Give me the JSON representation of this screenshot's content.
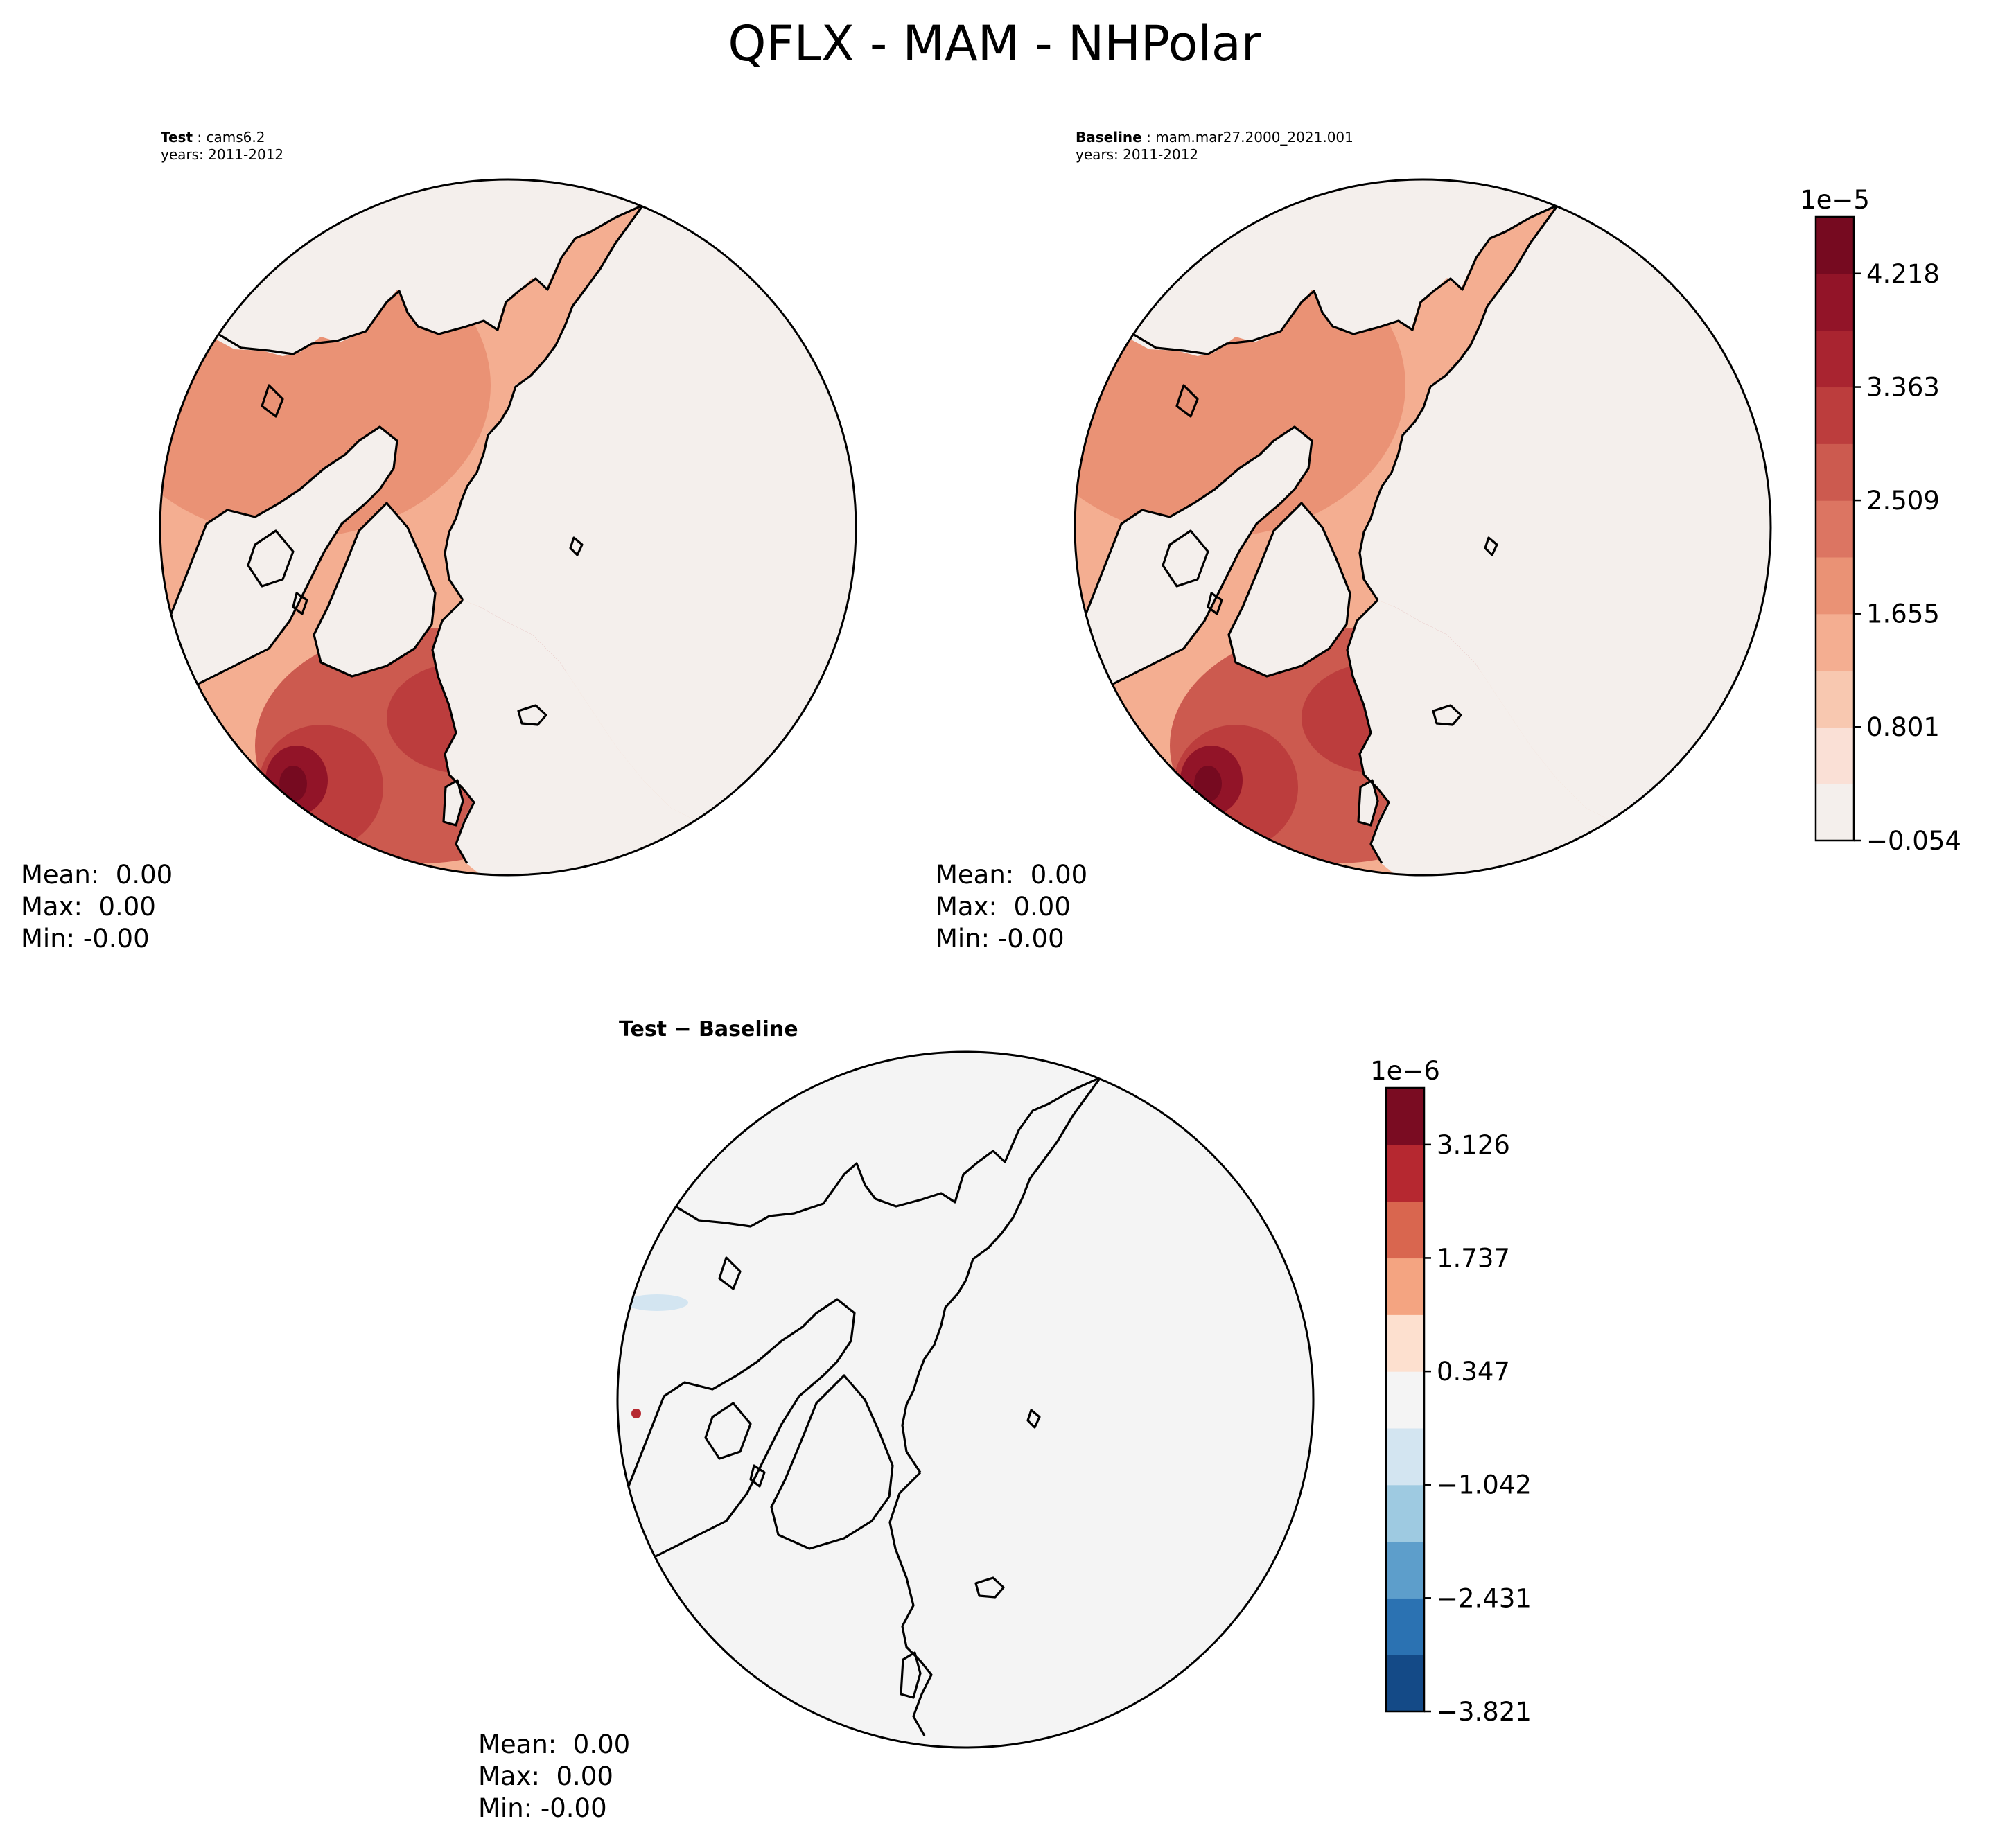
{
  "figure": {
    "suptitle": "QFLX - MAM - NHPolar"
  },
  "panels": {
    "test": {
      "label": "Test",
      "case": "cams6.2",
      "years": "years: 2011-2012",
      "stats": {
        "mean": "Mean:  0.00",
        "max": "Max:  0.00",
        "min": "Min: -0.00"
      }
    },
    "baseline": {
      "label": "Baseline",
      "case": "mam.mar27.2000_2021.001",
      "years": "years: 2011-2012",
      "stats": {
        "mean": "Mean:  0.00",
        "max": "Max:  0.00",
        "min": "Min: -0.00"
      }
    },
    "diff": {
      "title": "Test − Baseline",
      "stats": {
        "mean": "Mean:  0.00",
        "max": "Max:  0.00",
        "min": "Min: -0.00"
      }
    }
  },
  "colorbars": {
    "main": {
      "exponent": "1e−5",
      "tick_labels": [
        "4.218",
        "3.363",
        "2.509",
        "1.655",
        "0.801",
        "−0.054"
      ],
      "tick_values": [
        4.218,
        3.363,
        2.509,
        1.655,
        0.801,
        -0.054
      ],
      "range": [
        -0.054,
        4.645
      ],
      "colors": [
        "#f4efec",
        "#fae0d6",
        "#f8c8b0",
        "#f4ae91",
        "#ea9275",
        "#dc7562",
        "#cc5a4f",
        "#bc3d3d",
        "#a92430",
        "#921428",
        "#760a20"
      ]
    },
    "diff": {
      "exponent": "1e−6",
      "tick_labels": [
        "3.126",
        "1.737",
        "0.347",
        "−1.042",
        "−2.431",
        "−3.821"
      ],
      "tick_values": [
        3.126,
        1.737,
        0.347,
        -1.042,
        -2.431,
        -3.821
      ],
      "range": [
        -3.821,
        3.821
      ],
      "colors": [
        "#144a87",
        "#2b72b2",
        "#5d9ecb",
        "#9ecae1",
        "#d3e5f1",
        "#f4f4f4",
        "#fde0cf",
        "#f4a481",
        "#d9664f",
        "#b62830",
        "#7a0c22"
      ]
    }
  },
  "map": {
    "projection": "North Polar Stereographic",
    "coastline_color": "#000000",
    "land_color": "#f4efec",
    "no_change_color": "#f4f4f4"
  }
}
